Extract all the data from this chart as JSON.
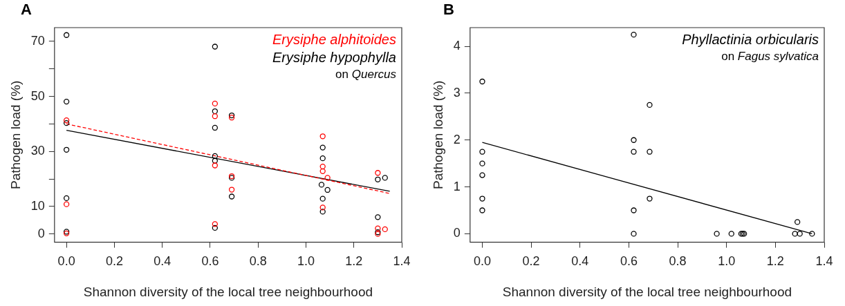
{
  "chart_data": [
    {
      "type": "scatter",
      "title": "A",
      "xlabel": "Shannon diversity of the local tree neighbourhood",
      "ylabel": "Pathogen load (%)",
      "xlim": [
        -0.05,
        1.4
      ],
      "ylim": [
        -3,
        75
      ],
      "xticks": [
        {
          "value": 0,
          "label": "0.0"
        },
        {
          "value": 0.2,
          "label": "0.2"
        },
        {
          "value": 0.4,
          "label": "0.4"
        },
        {
          "value": 0.6,
          "label": "0.6"
        },
        {
          "value": 0.8,
          "label": "0.8"
        },
        {
          "value": 1,
          "label": "1.0"
        },
        {
          "value": 1.2,
          "label": "1.2"
        },
        {
          "value": 1.4,
          "label": "1.4"
        }
      ],
      "yticks": [
        0,
        10,
        {
          "value": 20,
          "label": null
        },
        30,
        {
          "value": 40,
          "label": null
        },
        50,
        {
          "value": 60,
          "label": null
        },
        70
      ],
      "grid": false,
      "legend": "top right",
      "annotations": [
        "on Quercus"
      ],
      "series": [
        {
          "name": "Erysiphe alphitoides",
          "color": "#ff0000",
          "marker": "circle",
          "x": [
            0,
            0,
            0,
            0.62,
            0.62,
            0.62,
            0.62,
            0.69,
            0.69,
            0.69,
            1.07,
            1.07,
            1.07,
            1.07,
            1.09,
            1.3,
            1.3,
            1.33,
            1.3
          ],
          "values": [
            41.3,
            10.8,
            0.2,
            47.4,
            42.8,
            24.9,
            3.6,
            42.3,
            21.0,
            16.1,
            35.5,
            24.5,
            22.8,
            9.6,
            20.4,
            22.2,
            2.0,
            1.7,
            0
          ]
        },
        {
          "name": "Erysiphe hypophylla",
          "color": "#000000",
          "marker": "circle",
          "x": [
            0,
            0,
            0,
            0,
            0,
            0,
            0.62,
            0.62,
            0.62,
            0.62,
            0.62,
            0.62,
            0.69,
            0.69,
            0.69,
            1.07,
            1.07,
            1.065,
            1.07,
            1.07,
            1.09,
            1.3,
            1.33,
            1.3,
            1.3
          ],
          "values": [
            72.3,
            48.1,
            40.3,
            30.6,
            13.0,
            0.8,
            68.1,
            44.6,
            38.6,
            28.3,
            26.6,
            2.2,
            43.1,
            20.4,
            13.6,
            31.4,
            27.5,
            17.9,
            12.8,
            8.1,
            16.0,
            19.8,
            20.4,
            6.1,
            0.6
          ]
        },
        {
          "type": "line",
          "color": "#ff0000",
          "line_style": "dashed",
          "marker": "none",
          "x": [
            0,
            1.35
          ],
          "values": [
            40.0,
            14.7
          ]
        },
        {
          "type": "line",
          "color": "#000000",
          "line_style": "solid",
          "marker": "none",
          "x": [
            0,
            1.35
          ],
          "values": [
            37.7,
            15.5
          ]
        }
      ]
    },
    {
      "type": "scatter",
      "title": "B",
      "xlabel": "Shannon diversity of the local tree neighbourhood",
      "ylabel": "Pathogen load (%)",
      "xlim": [
        -0.05,
        1.4
      ],
      "ylim": [
        -0.18,
        4.4
      ],
      "xticks": [
        {
          "value": 0,
          "label": "0.0"
        },
        {
          "value": 0.2,
          "label": "0.2"
        },
        {
          "value": 0.4,
          "label": "0.4"
        },
        {
          "value": 0.6,
          "label": "0.6"
        },
        {
          "value": 0.8,
          "label": "0.8"
        },
        {
          "value": 1,
          "label": "1.0"
        },
        {
          "value": 1.2,
          "label": "1.2"
        },
        {
          "value": 1.4,
          "label": "1.4"
        }
      ],
      "yticks": [
        0,
        1,
        2,
        3,
        4
      ],
      "grid": false,
      "legend": "top right",
      "annotations": [
        "on Fagus sylvatica"
      ],
      "series": [
        {
          "name": "Phyllactinia orbicularis",
          "color": "#000000",
          "marker": "circle",
          "x": [
            0,
            0,
            0,
            0,
            0,
            0,
            0.62,
            0.62,
            0.62,
            0.62,
            0.62,
            0.685,
            0.685,
            0.685,
            0.96,
            1.02,
            1.06,
            1.066,
            1.072,
            1.28,
            1.3,
            1.29,
            1.35
          ],
          "values": [
            3.25,
            1.75,
            1.5,
            1.25,
            0.75,
            0.5,
            4.25,
            2.0,
            1.75,
            0.5,
            0,
            2.75,
            1.75,
            0.75,
            0,
            0,
            0,
            0,
            0,
            0,
            0,
            0.25,
            0
          ]
        },
        {
          "type": "line",
          "color": "#000000",
          "line_style": "solid",
          "marker": "none",
          "x": [
            0,
            1.35
          ],
          "values": [
            1.95,
            0
          ]
        }
      ]
    }
  ]
}
